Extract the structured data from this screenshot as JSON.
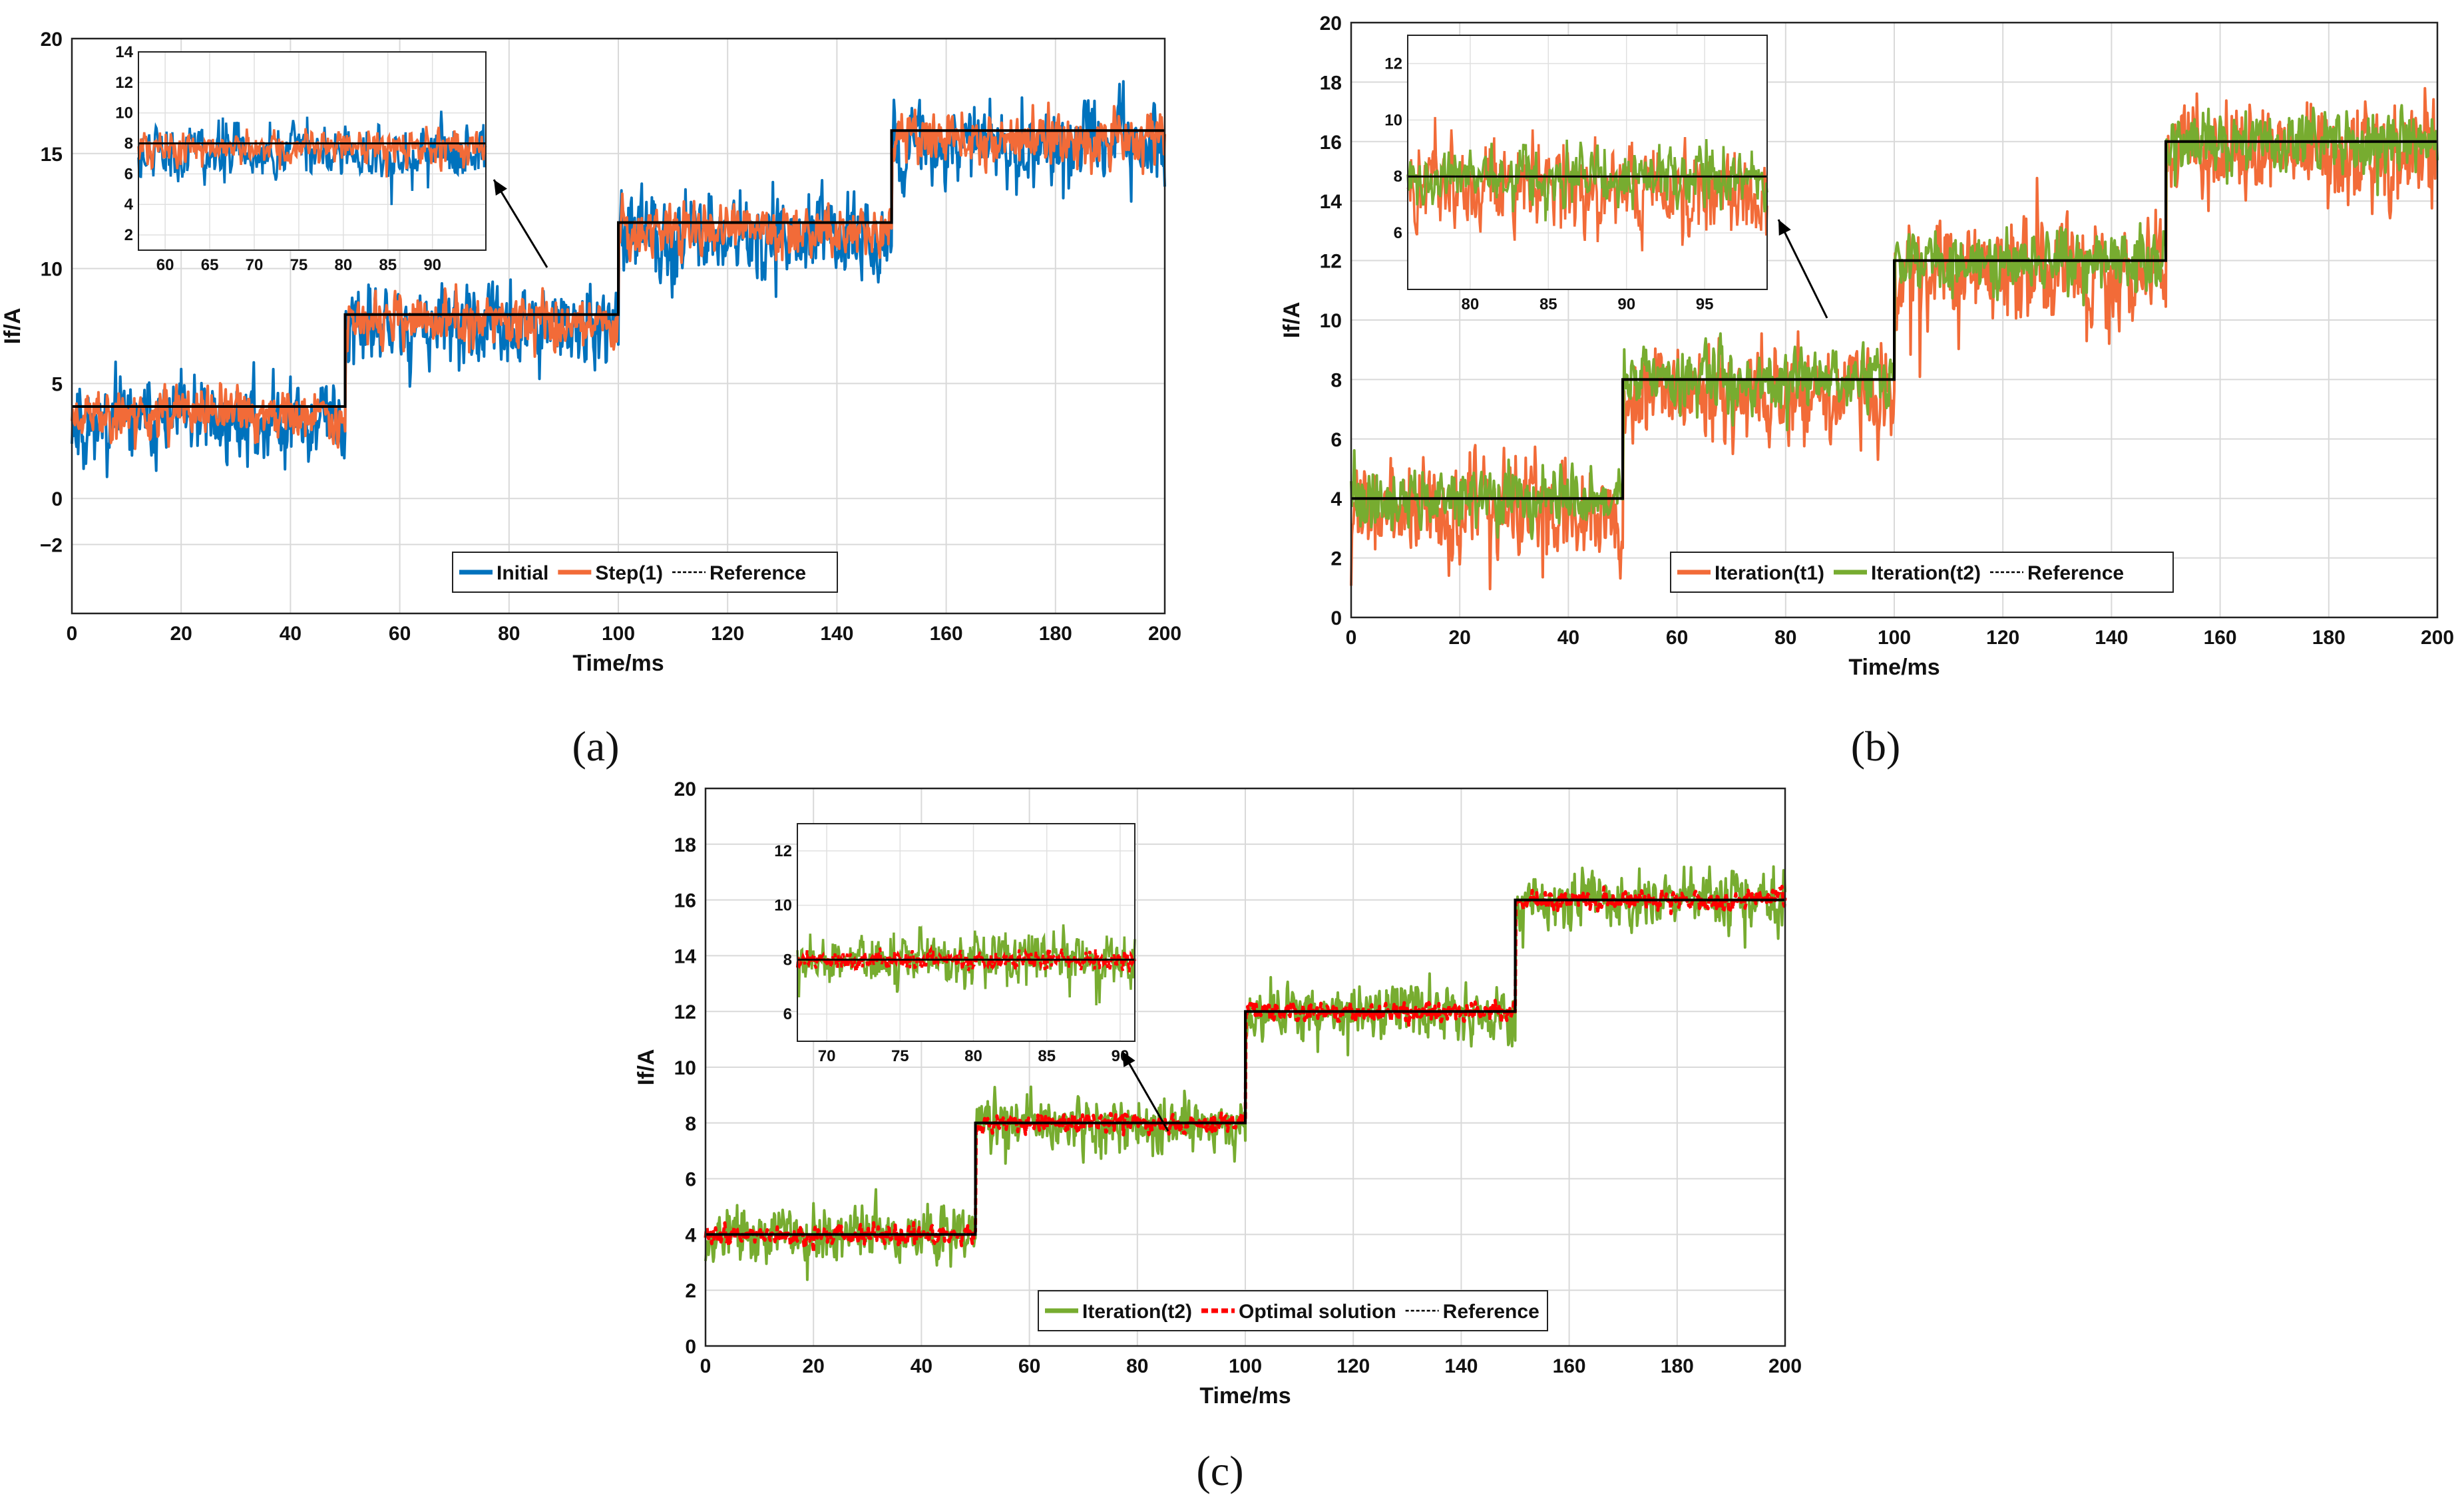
{
  "chart_data": [
    {
      "panel": "a",
      "type": "line",
      "caption": "(a)",
      "xlabel": "Time/ms",
      "ylabel": "If/A",
      "xlim": [
        0,
        200
      ],
      "ylim": [
        -5,
        20
      ],
      "xticks": [
        0,
        20,
        40,
        60,
        80,
        100,
        120,
        140,
        160,
        180,
        200
      ],
      "yticks": [
        -2,
        0,
        5,
        10,
        15,
        20
      ],
      "ytick_labels": [
        "−2",
        "0",
        "5",
        "10",
        "15",
        "20"
      ],
      "grid": true,
      "legend_position": "bottom-center",
      "reference": {
        "name": "Reference",
        "steps": [
          {
            "from": 0,
            "to": 50,
            "value": 4
          },
          {
            "from": 50,
            "to": 100,
            "value": 8
          },
          {
            "from": 100,
            "to": 150,
            "value": 12
          },
          {
            "from": 150,
            "to": 200,
            "value": 16
          }
        ]
      },
      "series": [
        {
          "name": "Initial",
          "color": "#0072BD",
          "noise_amplitude": 1.6,
          "offset": -0.6,
          "seed": 11
        },
        {
          "name": "Step(1)",
          "color": "#F26B38",
          "noise_amplitude": 1.0,
          "offset": -0.3,
          "seed": 23
        },
        {
          "name": "Reference",
          "color": "#000000",
          "style": "dashed"
        }
      ],
      "inset": {
        "xlim": [
          57,
          96
        ],
        "ylim": [
          1,
          14
        ],
        "xticks": [
          60,
          65,
          70,
          75,
          80,
          85,
          90
        ],
        "yticks": [
          2,
          4,
          6,
          8,
          10,
          12,
          14
        ],
        "reference_value": 8,
        "arrow_to": "plateau 8 A near t = 88 ms"
      }
    },
    {
      "panel": "b",
      "type": "line",
      "caption": "(b)",
      "xlabel": "Time/ms",
      "ylabel": "If/A",
      "xlim": [
        0,
        200
      ],
      "ylim": [
        0,
        20
      ],
      "xticks": [
        0,
        20,
        40,
        60,
        80,
        100,
        120,
        140,
        160,
        180,
        200
      ],
      "yticks": [
        0,
        2,
        4,
        6,
        8,
        10,
        12,
        14,
        16,
        18,
        20
      ],
      "ytick_labels": [
        "0",
        "2",
        "4",
        "6",
        "8",
        "10",
        "12",
        "14",
        "16",
        "18",
        "20"
      ],
      "grid": true,
      "legend_position": "bottom-right",
      "reference": {
        "name": "Reference",
        "steps": [
          {
            "from": 0,
            "to": 50,
            "value": 4
          },
          {
            "from": 50,
            "to": 100,
            "value": 8
          },
          {
            "from": 100,
            "to": 150,
            "value": 12
          },
          {
            "from": 150,
            "to": 200,
            "value": 16
          }
        ]
      },
      "series": [
        {
          "name": "Iteration(t1)",
          "color": "#F26B38",
          "noise_amplitude": 1.5,
          "offset": -0.4,
          "seed": 37
        },
        {
          "name": "Iteration(t2)",
          "color": "#77AC30",
          "noise_amplitude": 0.9,
          "offset": 0.0,
          "seed": 41
        },
        {
          "name": "Reference",
          "color": "#000000",
          "style": "dashed"
        }
      ],
      "inset": {
        "xlim": [
          76,
          99
        ],
        "ylim": [
          4,
          13
        ],
        "xticks": [
          80,
          85,
          90,
          95
        ],
        "yticks": [
          6,
          8,
          10,
          12
        ],
        "reference_value": 8,
        "arrow_to": "plateau 8 A near t = 90 ms"
      }
    },
    {
      "panel": "c",
      "type": "line",
      "caption": "(c)",
      "xlabel": "Time/ms",
      "ylabel": "If/A",
      "xlim": [
        0,
        200
      ],
      "ylim": [
        0,
        20
      ],
      "xticks": [
        0,
        20,
        40,
        60,
        80,
        100,
        120,
        140,
        160,
        180,
        200
      ],
      "yticks": [
        0,
        2,
        4,
        6,
        8,
        10,
        12,
        14,
        16,
        18,
        20
      ],
      "ytick_labels": [
        "0",
        "2",
        "4",
        "6",
        "8",
        "10",
        "12",
        "14",
        "16",
        "18",
        "20"
      ],
      "grid": true,
      "legend_position": "bottom-right",
      "reference": {
        "name": "Reference",
        "steps": [
          {
            "from": 0,
            "to": 50,
            "value": 4
          },
          {
            "from": 50,
            "to": 100,
            "value": 8
          },
          {
            "from": 100,
            "to": 150,
            "value": 12
          },
          {
            "from": 150,
            "to": 200,
            "value": 16
          }
        ]
      },
      "series": [
        {
          "name": "Iteration(t2)",
          "color": "#77AC30",
          "noise_amplitude": 0.9,
          "offset": 0.0,
          "seed": 53
        },
        {
          "name": "Optimal solution",
          "color": "#FF0000",
          "style": "dashed",
          "noise_amplitude": 0.3,
          "offset": 0.0,
          "seed": 59
        },
        {
          "name": "Reference",
          "color": "#000000",
          "style": "dashed"
        }
      ],
      "inset": {
        "xlim": [
          68,
          91
        ],
        "ylim": [
          5,
          13
        ],
        "xticks": [
          70,
          75,
          80,
          85,
          90
        ],
        "yticks": [
          6,
          8,
          10,
          12
        ],
        "reference_value": 8,
        "arrow_to": "plateau 8 A near t = 86 ms"
      }
    }
  ]
}
